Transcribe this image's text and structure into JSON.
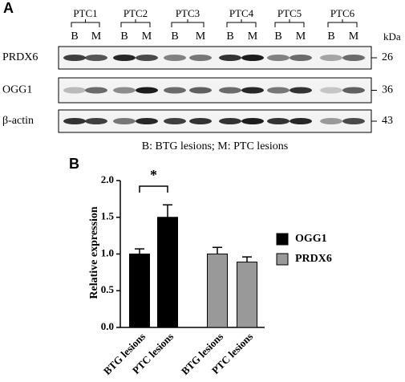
{
  "panel_a": {
    "label": "A",
    "groups": [
      "PTC1",
      "PTC2",
      "PTC3",
      "PTC4",
      "PTC5",
      "PTC6"
    ],
    "lanes": [
      "B",
      "M",
      "B",
      "M",
      "B",
      "M",
      "B",
      "M",
      "B",
      "M",
      "B",
      "M"
    ],
    "unit": "kDa",
    "rows": [
      {
        "name": "PRDX6",
        "size": "26"
      },
      {
        "name": "OGG1",
        "size": "36"
      },
      {
        "name": "β-actin",
        "size": "43"
      }
    ],
    "caption": "B: BTG lesions; M: PTC lesions"
  },
  "chart_data": {
    "type": "bar",
    "panel_label": "B",
    "y_label": "Relative expression",
    "categories": [
      "BTG lesions",
      "PTC lesions",
      "BTG lesions",
      "PTC lesions"
    ],
    "series": [
      {
        "name": "OGG1",
        "color": "#000000",
        "values": [
          1.0,
          1.5,
          null,
          null
        ],
        "errors": [
          0.07,
          0.17,
          null,
          null
        ]
      },
      {
        "name": "PRDX6",
        "color": "#999999",
        "values": [
          null,
          null,
          1.0,
          0.89
        ],
        "errors": [
          null,
          null,
          0.09,
          0.07
        ]
      }
    ],
    "annotation": "*",
    "ylim": [
      0,
      2
    ],
    "yticks": [
      {
        "value": 0,
        "label": "0.0"
      },
      {
        "value": 0.5,
        "label": "0.5"
      },
      {
        "value": 1,
        "label": "1.0"
      },
      {
        "value": 1.5,
        "label": "1.5"
      },
      {
        "value": 2,
        "label": "2.0"
      }
    ]
  }
}
